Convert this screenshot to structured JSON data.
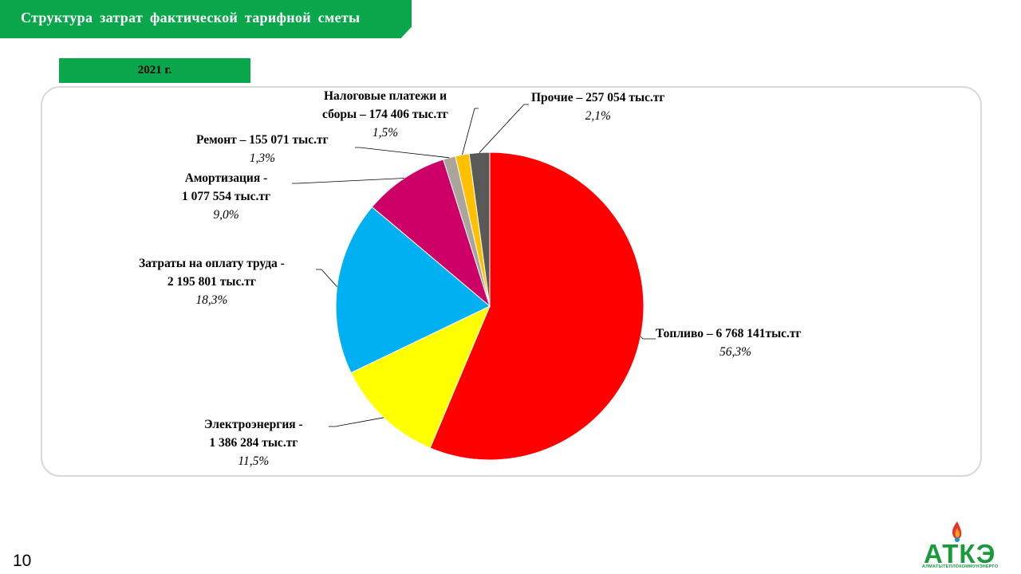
{
  "header": {
    "title": "Структура  затрат  фактической  тарифной  сметы",
    "year": "2021 г."
  },
  "page_number": "10",
  "logo": {
    "name": "АТКЭ",
    "subtitle": "АЛМАТЫТЕПЛОКОММУНЭНЕРГО"
  },
  "colors": {
    "accent": "#0aa64c",
    "frame": "#d9d9d9"
  },
  "chart_data": {
    "type": "pie",
    "start_angle_deg": 0,
    "direction": "clockwise",
    "slices": [
      {
        "key": "fuel",
        "line1": "Топливо – 6 768 141тыс.тг",
        "line2": "",
        "percent_label": "56,3%",
        "value": 6768141,
        "color": "#ff0000"
      },
      {
        "key": "electricity",
        "line1": "Электроэнергия -",
        "line2": "1 386 284 тыс.тг",
        "percent_label": "11,5%",
        "value": 1386284,
        "color": "#ffff00"
      },
      {
        "key": "labor",
        "line1": "Затраты на оплату труда -",
        "line2": "2 195 801 тыс.тг",
        "percent_label": "18,3%",
        "value": 2195801,
        "color": "#00b0f0"
      },
      {
        "key": "amortization",
        "line1": "Амортизация -",
        "line2": "1 077 554 тыс.тг",
        "percent_label": "9,0%",
        "value": 1077554,
        "color": "#cc0066"
      },
      {
        "key": "repair",
        "line1": "Ремонт – 155 071 тыс.тг",
        "line2": "",
        "percent_label": "1,3%",
        "value": 155071,
        "color": "#aaa49b"
      },
      {
        "key": "taxes",
        "line1": "Налоговые платежи и",
        "line2": "сборы – 174 406 тыс.тг",
        "percent_label": "1,5%",
        "value": 174406,
        "color": "#ffc000"
      },
      {
        "key": "other",
        "line1": "Прочие – 257 054 тыс.тг",
        "line2": "",
        "percent_label": "2,1%",
        "value": 257054,
        "color": "#595959"
      }
    ]
  }
}
